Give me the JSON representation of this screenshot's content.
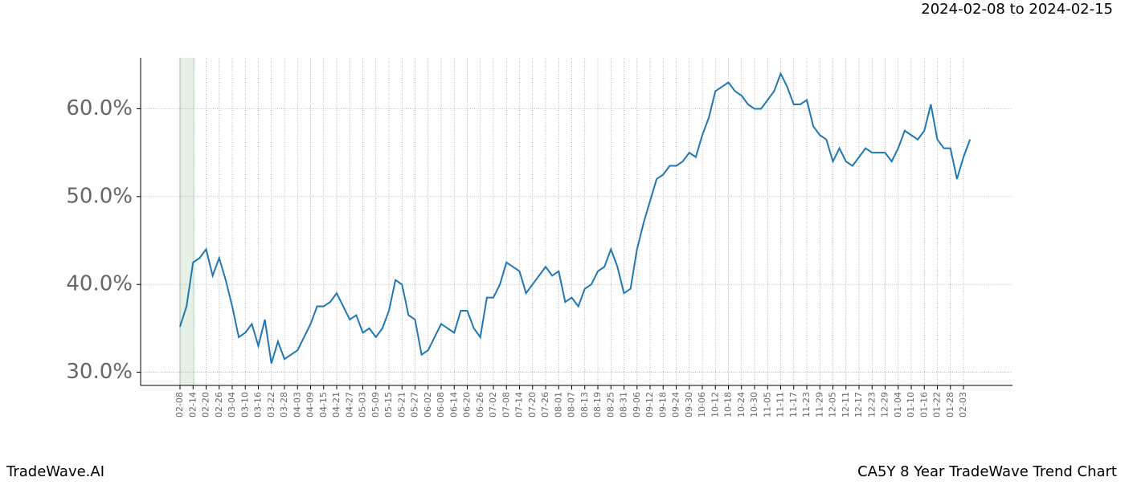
{
  "header": {
    "date_range": "2024-02-08 to 2024-02-15"
  },
  "footer": {
    "brand": "TradeWave.AI",
    "title": "CA5Y 8 Year TradeWave Trend Chart"
  },
  "chart_data": {
    "type": "line",
    "categories": [
      "02-08",
      null,
      "02-14",
      null,
      "02-20",
      null,
      "02-26",
      null,
      "03-04",
      null,
      "03-10",
      null,
      "03-16",
      null,
      "03-22",
      null,
      "03-28",
      null,
      "04-03",
      null,
      "04-09",
      null,
      "04-15",
      null,
      "04-21",
      null,
      "04-27",
      null,
      "05-03",
      null,
      "05-09",
      null,
      "05-15",
      null,
      "05-21",
      null,
      "05-27",
      null,
      "06-02",
      null,
      "06-08",
      null,
      "06-14",
      null,
      "06-20",
      null,
      "06-26",
      null,
      "07-02",
      null,
      "07-08",
      null,
      "07-14",
      null,
      "07-20",
      null,
      "07-26",
      null,
      "08-01",
      null,
      "08-07",
      null,
      "08-13",
      null,
      "08-19",
      null,
      "08-25",
      null,
      "08-31",
      null,
      "09-06",
      null,
      "09-12",
      null,
      "09-18",
      null,
      "09-24",
      null,
      "09-30",
      null,
      "10-06",
      null,
      "10-12",
      null,
      "10-18",
      null,
      "10-24",
      null,
      "10-30",
      null,
      "11-05",
      null,
      "11-11",
      null,
      "11-17",
      null,
      "11-23",
      null,
      "11-29",
      null,
      "12-05",
      null,
      "12-11",
      null,
      "12-17",
      null,
      "12-23",
      null,
      "12-29",
      null,
      "01-04",
      null,
      "01-10",
      null,
      "01-16",
      null,
      "01-22",
      null,
      "01-28",
      null,
      "02-03",
      null
    ],
    "values": [
      35.2,
      37.5,
      42.5,
      43,
      44,
      41,
      43,
      40.5,
      37.5,
      34,
      34.5,
      35.5,
      33,
      36,
      31,
      33.5,
      31.5,
      32,
      32.5,
      34,
      35.5,
      37.5,
      37.5,
      38,
      39,
      37.5,
      36,
      36.5,
      34.5,
      35,
      34,
      35,
      37,
      40.5,
      40,
      36.5,
      36,
      32,
      32.5,
      34,
      35.5,
      35,
      34.5,
      37,
      37,
      35,
      34,
      38.5,
      38.5,
      40,
      42.5,
      42,
      41.5,
      39,
      40,
      41,
      42,
      41,
      41.5,
      38,
      38.5,
      37.5,
      39.5,
      40,
      41.5,
      42,
      44,
      42,
      39,
      39.5,
      44,
      47,
      49.5,
      52,
      52.5,
      53.5,
      53.5,
      54,
      55,
      54.5,
      57,
      59,
      62,
      62.5,
      63,
      62,
      61.5,
      60.5,
      60,
      60,
      61,
      62,
      64,
      62.5,
      60.5,
      60.5,
      61,
      58,
      57,
      56.5,
      54,
      55.5,
      54,
      53.5,
      54.5,
      55.5,
      55,
      55,
      55,
      54,
      55.5,
      57.5,
      57,
      56.5,
      57.5,
      60.5,
      56.5,
      55.5,
      55.5,
      52,
      54.5,
      56.5
    ],
    "color": "#1f77b4",
    "ylim": [
      28.5,
      65.8
    ],
    "yticks": [
      {
        "value": 30,
        "label": "30.0%"
      },
      {
        "value": 40,
        "label": "40.0%"
      },
      {
        "value": 50,
        "label": "50.0%"
      },
      {
        "value": 60,
        "label": "60.0%"
      }
    ],
    "grid": true
  }
}
